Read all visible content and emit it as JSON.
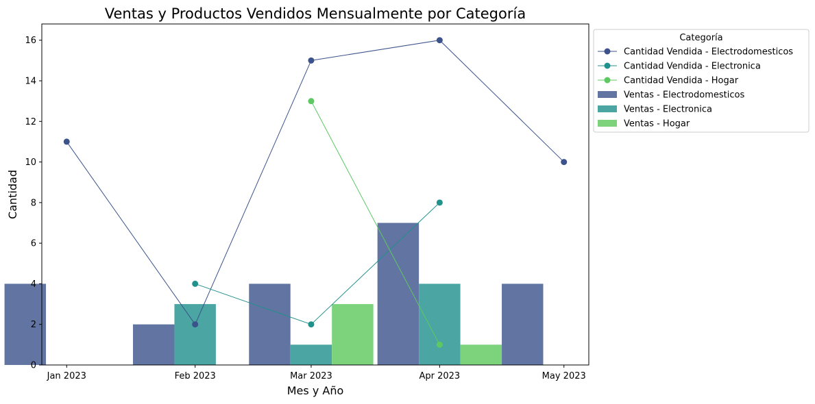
{
  "chart_data": {
    "type": "bar+line",
    "title": "Ventas y Productos Vendidos Mensualmente por Categoría",
    "xlabel": "Mes y Año",
    "ylabel": "Cantidad",
    "ylim": [
      0,
      16.8
    ],
    "xlim": [
      "2023-01-01",
      "2023-05-01"
    ],
    "yticks": [
      0,
      2,
      4,
      6,
      8,
      10,
      12,
      14,
      16
    ],
    "xticks": [
      {
        "date": "2023-01-01",
        "label": "Jan 2023"
      },
      {
        "date": "2023-02-01",
        "label": "Feb 2023"
      },
      {
        "date": "2023-03-01",
        "label": "Mar 2023"
      },
      {
        "date": "2023-04-01",
        "label": "Apr 2023"
      },
      {
        "date": "2023-05-01",
        "label": "May 2023"
      }
    ],
    "grid": false,
    "legend": {
      "title": "Categoría",
      "placement": "outside-top-right"
    },
    "bar_series": [
      {
        "name": "Ventas - Electrodomesticos",
        "color": "#6174a2",
        "offset": -1,
        "points": [
          {
            "x": "2023-01-01",
            "y": 4
          },
          {
            "x": "2023-02-01",
            "y": 2
          },
          {
            "x": "2023-03-01",
            "y": 4
          },
          {
            "x": "2023-04-01",
            "y": 7
          },
          {
            "x": "2023-05-01",
            "y": 4
          }
        ]
      },
      {
        "name": "Ventas - Electronica",
        "color": "#4ba6a3",
        "offset": 0,
        "points": [
          {
            "x": "2023-02-01",
            "y": 3
          },
          {
            "x": "2023-03-01",
            "y": 1
          },
          {
            "x": "2023-04-01",
            "y": 4
          }
        ]
      },
      {
        "name": "Ventas - Hogar",
        "color": "#7dd37c",
        "offset": 1,
        "points": [
          {
            "x": "2023-03-01",
            "y": 3
          },
          {
            "x": "2023-04-01",
            "y": 1
          }
        ]
      }
    ],
    "line_series": [
      {
        "name": "Cantidad Vendida - Electrodomesticos",
        "color": "#3b528b",
        "points": [
          {
            "x": "2023-01-01",
            "y": 11
          },
          {
            "x": "2023-02-01",
            "y": 2
          },
          {
            "x": "2023-03-01",
            "y": 15
          },
          {
            "x": "2023-04-01",
            "y": 16
          },
          {
            "x": "2023-05-01",
            "y": 10
          }
        ]
      },
      {
        "name": "Cantidad Vendida - Electronica",
        "color": "#21918c",
        "points": [
          {
            "x": "2023-02-01",
            "y": 4
          },
          {
            "x": "2023-03-01",
            "y": 2
          },
          {
            "x": "2023-04-01",
            "y": 8
          }
        ]
      },
      {
        "name": "Cantidad Vendida - Hogar",
        "color": "#5ec962",
        "points": [
          {
            "x": "2023-03-01",
            "y": 13
          },
          {
            "x": "2023-04-01",
            "y": 1
          }
        ]
      }
    ]
  }
}
